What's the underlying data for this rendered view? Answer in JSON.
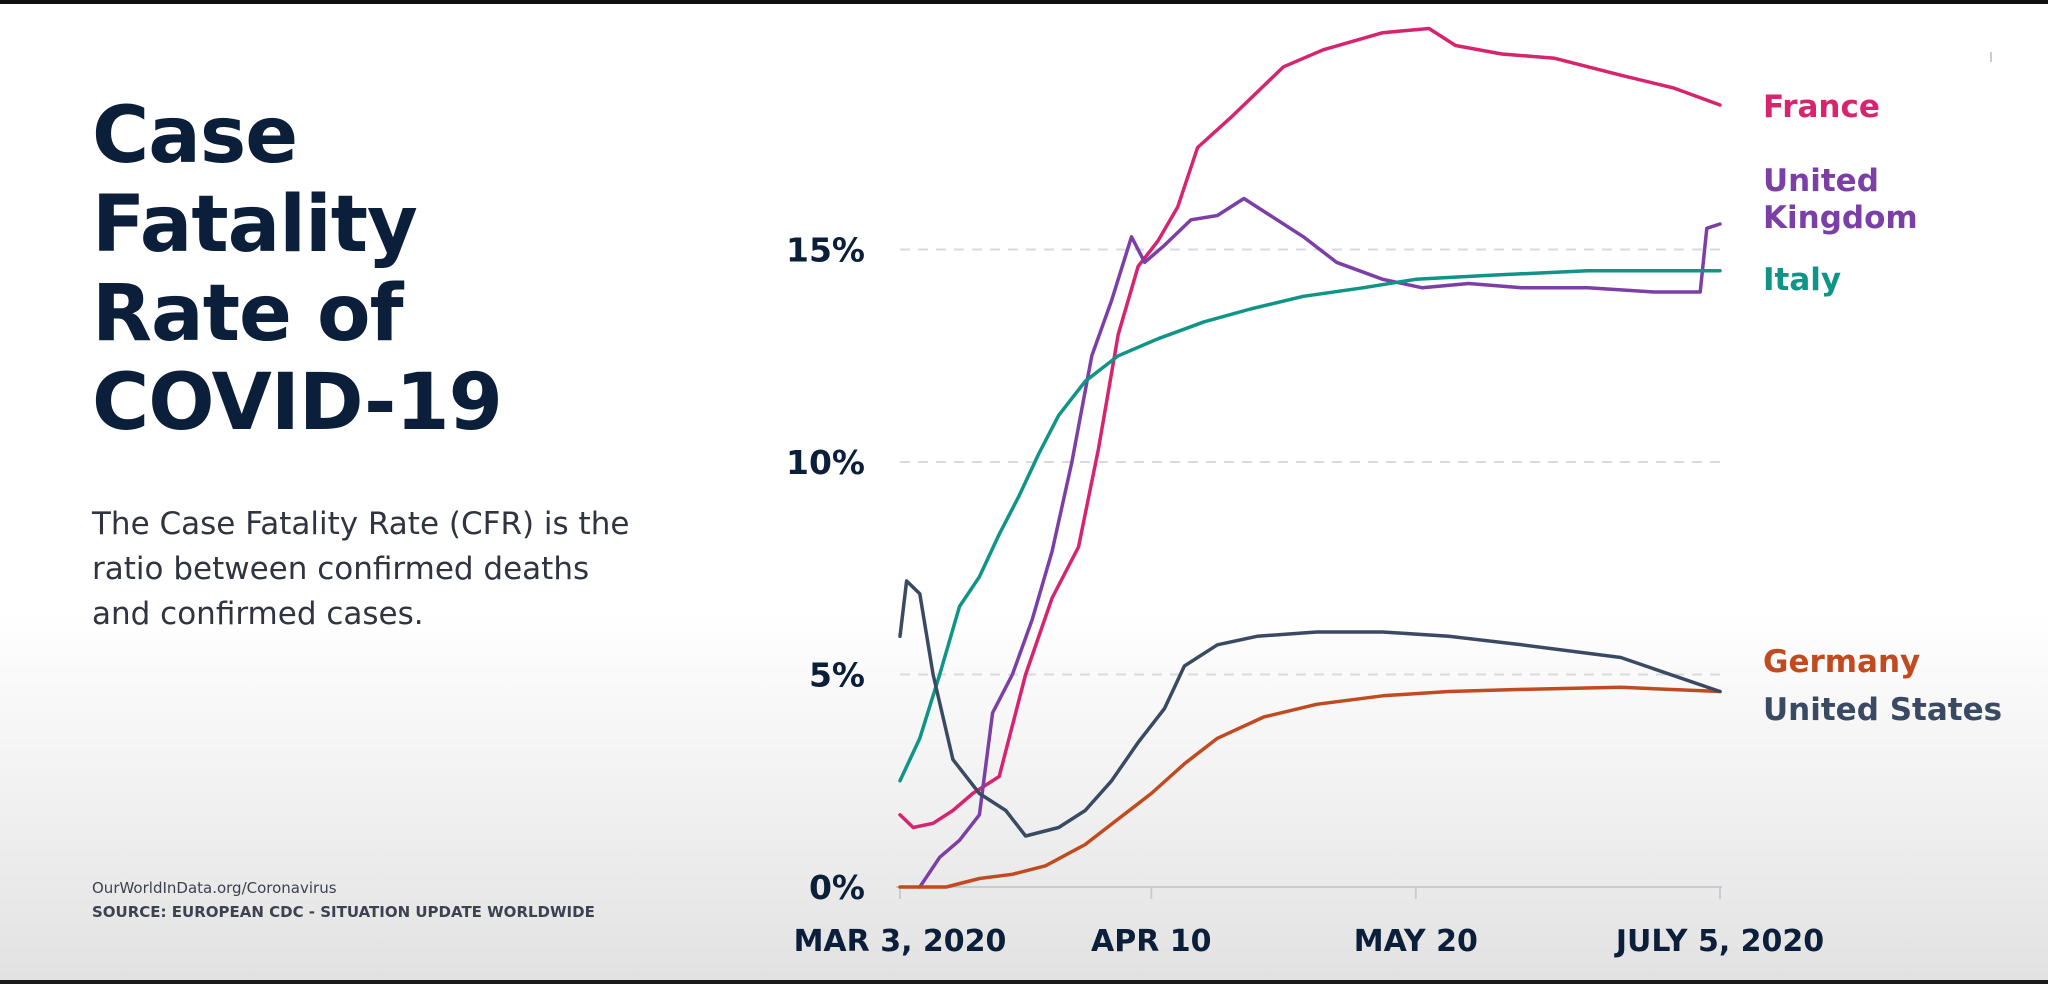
{
  "slide": {
    "title": "Case\nFatality\nRate of\nCOVID-19",
    "description": "The Case Fatality Rate (CFR) is the ratio between confirmed deaths and confirmed cases.",
    "source_line1": "OurWorldInData.org/Coronavirus",
    "source_line2": "SOURCE: EUROPEAN CDC - SITUATION UPDATE WORLDWIDE"
  },
  "chart_data": {
    "type": "line",
    "title": "Case Fatality Rate of COVID-19",
    "xlabel": "",
    "ylabel": "",
    "x_range": [
      "2020-03-03",
      "2020-07-05"
    ],
    "ylim": [
      0,
      20
    ],
    "y_ticks": [
      {
        "value": 0,
        "label": "0%"
      },
      {
        "value": 5,
        "label": "5%"
      },
      {
        "value": 10,
        "label": "10%"
      },
      {
        "value": 15,
        "label": "15%"
      }
    ],
    "x_ticks": [
      {
        "date": "2020-03-03",
        "label": "MAR 3, 2020"
      },
      {
        "date": "2020-04-10",
        "label": "APR 10"
      },
      {
        "date": "2020-05-20",
        "label": "MAY 20"
      },
      {
        "date": "2020-07-05",
        "label": "JULY 5, 2020"
      }
    ],
    "grid": "horizontal dashed",
    "legend": "labels at right end of lines",
    "series": [
      {
        "name": "France",
        "color": "#d6246e",
        "points": [
          [
            "2020-03-03",
            1.7
          ],
          [
            "2020-03-05",
            1.4
          ],
          [
            "2020-03-08",
            1.5
          ],
          [
            "2020-03-11",
            1.8
          ],
          [
            "2020-03-14",
            2.2
          ],
          [
            "2020-03-18",
            2.6
          ],
          [
            "2020-03-22",
            5.0
          ],
          [
            "2020-03-26",
            6.8
          ],
          [
            "2020-03-30",
            8.0
          ],
          [
            "2020-04-02",
            10.3
          ],
          [
            "2020-04-05",
            13.0
          ],
          [
            "2020-04-08",
            14.6
          ],
          [
            "2020-04-11",
            15.2
          ],
          [
            "2020-04-14",
            16.0
          ],
          [
            "2020-04-17",
            17.4
          ],
          [
            "2020-04-22",
            18.1
          ],
          [
            "2020-04-30",
            19.3
          ],
          [
            "2020-05-06",
            19.7
          ],
          [
            "2020-05-15",
            20.1
          ],
          [
            "2020-05-22",
            20.2
          ],
          [
            "2020-05-26",
            19.8
          ],
          [
            "2020-06-02",
            19.6
          ],
          [
            "2020-06-10",
            19.5
          ],
          [
            "2020-06-20",
            19.1
          ],
          [
            "2020-06-28",
            18.8
          ],
          [
            "2020-07-05",
            18.4
          ]
        ]
      },
      {
        "name": "United Kingdom",
        "color": "#7b3fa6",
        "points": [
          [
            "2020-03-06",
            0.0
          ],
          [
            "2020-03-09",
            0.7
          ],
          [
            "2020-03-12",
            1.1
          ],
          [
            "2020-03-15",
            1.7
          ],
          [
            "2020-03-17",
            4.1
          ],
          [
            "2020-03-20",
            5.0
          ],
          [
            "2020-03-23",
            6.3
          ],
          [
            "2020-03-26",
            7.9
          ],
          [
            "2020-03-29",
            10.0
          ],
          [
            "2020-04-01",
            12.5
          ],
          [
            "2020-04-04",
            13.8
          ],
          [
            "2020-04-07",
            15.3
          ],
          [
            "2020-04-09",
            14.7
          ],
          [
            "2020-04-12",
            15.1
          ],
          [
            "2020-04-16",
            15.7
          ],
          [
            "2020-04-20",
            15.8
          ],
          [
            "2020-04-24",
            16.2
          ],
          [
            "2020-04-28",
            15.8
          ],
          [
            "2020-05-03",
            15.3
          ],
          [
            "2020-05-08",
            14.7
          ],
          [
            "2020-05-15",
            14.3
          ],
          [
            "2020-05-21",
            14.1
          ],
          [
            "2020-05-28",
            14.2
          ],
          [
            "2020-06-05",
            14.1
          ],
          [
            "2020-06-15",
            14.1
          ],
          [
            "2020-06-25",
            14.0
          ],
          [
            "2020-07-02",
            14.0
          ],
          [
            "2020-07-03",
            15.5
          ],
          [
            "2020-07-05",
            15.6
          ]
        ]
      },
      {
        "name": "Italy",
        "color": "#0f9488",
        "points": [
          [
            "2020-03-03",
            2.5
          ],
          [
            "2020-03-06",
            3.5
          ],
          [
            "2020-03-09",
            5.0
          ],
          [
            "2020-03-12",
            6.6
          ],
          [
            "2020-03-15",
            7.3
          ],
          [
            "2020-03-18",
            8.3
          ],
          [
            "2020-03-21",
            9.2
          ],
          [
            "2020-03-24",
            10.2
          ],
          [
            "2020-03-27",
            11.1
          ],
          [
            "2020-03-31",
            11.9
          ],
          [
            "2020-04-05",
            12.5
          ],
          [
            "2020-04-11",
            12.9
          ],
          [
            "2020-04-18",
            13.3
          ],
          [
            "2020-04-25",
            13.6
          ],
          [
            "2020-05-03",
            13.9
          ],
          [
            "2020-05-12",
            14.1
          ],
          [
            "2020-05-20",
            14.3
          ],
          [
            "2020-06-01",
            14.4
          ],
          [
            "2020-06-15",
            14.5
          ],
          [
            "2020-07-05",
            14.5
          ]
        ]
      },
      {
        "name": "Germany",
        "color": "#c14a1e",
        "points": [
          [
            "2020-03-03",
            0.0
          ],
          [
            "2020-03-10",
            0.0
          ],
          [
            "2020-03-15",
            0.2
          ],
          [
            "2020-03-20",
            0.3
          ],
          [
            "2020-03-25",
            0.5
          ],
          [
            "2020-03-31",
            1.0
          ],
          [
            "2020-04-05",
            1.6
          ],
          [
            "2020-04-10",
            2.2
          ],
          [
            "2020-04-15",
            2.9
          ],
          [
            "2020-04-20",
            3.5
          ],
          [
            "2020-04-27",
            4.0
          ],
          [
            "2020-05-05",
            4.3
          ],
          [
            "2020-05-15",
            4.5
          ],
          [
            "2020-05-25",
            4.6
          ],
          [
            "2020-06-05",
            4.65
          ],
          [
            "2020-06-20",
            4.7
          ],
          [
            "2020-07-05",
            4.6
          ]
        ]
      },
      {
        "name": "United States",
        "color": "#3a4a63",
        "points": [
          [
            "2020-03-03",
            5.9
          ],
          [
            "2020-03-04",
            7.2
          ],
          [
            "2020-03-06",
            6.9
          ],
          [
            "2020-03-08",
            5.0
          ],
          [
            "2020-03-11",
            3.0
          ],
          [
            "2020-03-15",
            2.2
          ],
          [
            "2020-03-19",
            1.8
          ],
          [
            "2020-03-22",
            1.2
          ],
          [
            "2020-03-27",
            1.4
          ],
          [
            "2020-03-31",
            1.8
          ],
          [
            "2020-04-04",
            2.5
          ],
          [
            "2020-04-08",
            3.4
          ],
          [
            "2020-04-12",
            4.2
          ],
          [
            "2020-04-15",
            5.2
          ],
          [
            "2020-04-20",
            5.7
          ],
          [
            "2020-04-26",
            5.9
          ],
          [
            "2020-05-05",
            6.0
          ],
          [
            "2020-05-15",
            6.0
          ],
          [
            "2020-05-25",
            5.9
          ],
          [
            "2020-06-05",
            5.7
          ],
          [
            "2020-06-20",
            5.4
          ],
          [
            "2020-07-05",
            4.6
          ]
        ]
      }
    ]
  }
}
